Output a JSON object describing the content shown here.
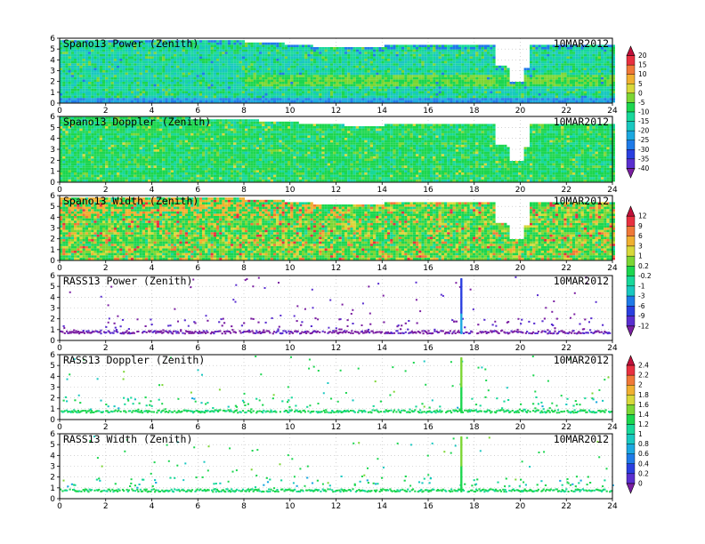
{
  "chart_data": {
    "type": "heatmap",
    "date": "10MAR2012",
    "x_ticks": [
      0,
      2,
      4,
      6,
      8,
      10,
      12,
      14,
      16,
      18,
      20,
      22,
      24
    ],
    "xlim": [
      0,
      24
    ],
    "y_ticks": [
      0,
      1,
      2,
      3,
      4,
      5,
      6
    ],
    "panels": [
      {
        "title": "Spano13 Power (Zenith)",
        "date": "10MAR2012",
        "ylim": [
          0,
          6
        ],
        "kind": "wind_power"
      },
      {
        "title": "Spano13 Doppler (Zenith)",
        "date": "10MAR2012",
        "ylim": [
          0,
          6
        ],
        "kind": "wind_doppler"
      },
      {
        "title": "Spano13 Width (Zenith)",
        "date": "10MAR2012",
        "ylim": [
          0,
          6
        ],
        "kind": "wind_width"
      },
      {
        "title": "RASS13 Power (Zenith)",
        "date": "10MAR2012",
        "ylim": [
          0,
          6
        ],
        "kind": "rass_power"
      },
      {
        "title": "RASS13 Doppler (Zenith)",
        "date": "10MAR2012",
        "ylim": [
          0,
          6
        ],
        "kind": "rass_doppler"
      },
      {
        "title": "RASS13 Width (Zenith)",
        "date": "10MAR2012",
        "ylim": [
          0,
          6
        ],
        "kind": "rass_width"
      }
    ],
    "colorbars": [
      {
        "labels": [
          "20",
          "15",
          "10",
          "5",
          "0",
          "-5",
          "-10",
          "-15",
          "-20",
          "-25",
          "-30",
          "-35",
          "-40"
        ]
      },
      {
        "labels": [
          "12",
          "9",
          "6",
          "3",
          "1",
          "0.2",
          "-0.2",
          "-1",
          "-3",
          "-6",
          "-9",
          "-12"
        ]
      },
      {
        "labels": [
          "2.4",
          "2.2",
          "2",
          "1.8",
          "1.6",
          "1.4",
          "1.2",
          "1",
          "0.8",
          "0.6",
          "0.4",
          "0.2",
          "0"
        ]
      }
    ],
    "colors": {
      "palette": [
        "#7b1fa2",
        "#5a2fd0",
        "#2a3fe0",
        "#1f7ae8",
        "#1ca8e0",
        "#19c8c0",
        "#18d89a",
        "#1cd64f",
        "#7cd634",
        "#d8d83a",
        "#f0b030",
        "#f07838",
        "#e83040",
        "#c0103a"
      ]
    }
  }
}
